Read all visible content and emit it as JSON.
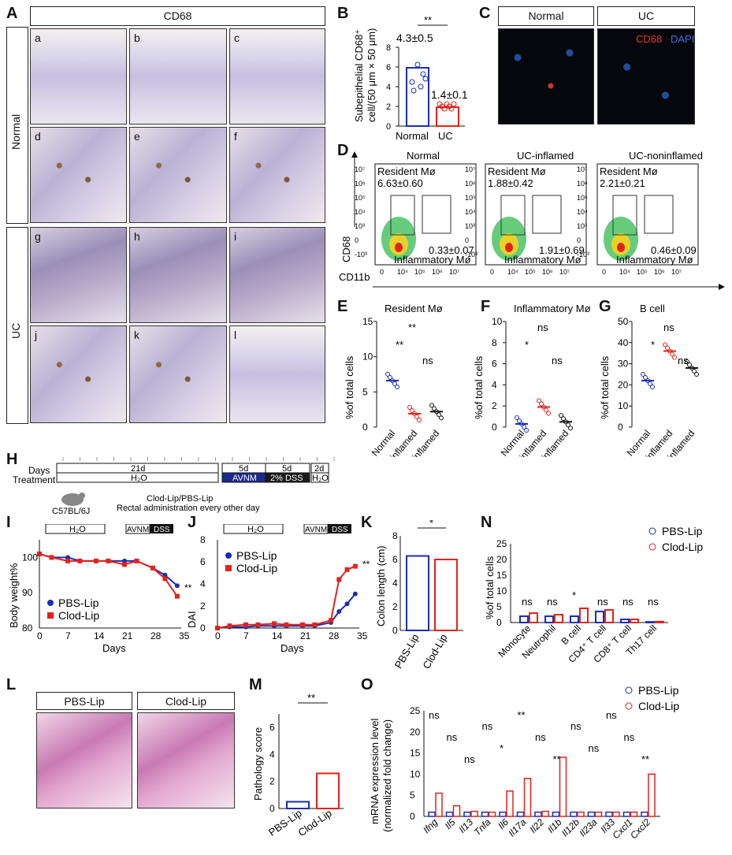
{
  "panelA": {
    "label": "A",
    "header": "CD68",
    "row_labels": [
      "Normal",
      "UC"
    ],
    "sublabels": [
      "a",
      "b",
      "c",
      "d",
      "e",
      "f",
      "g",
      "h",
      "i",
      "j",
      "k",
      "l"
    ]
  },
  "panelB": {
    "label": "B",
    "ylabel_line1": "Subepithelial CD68⁺",
    "ylabel_line2": "cell/(50 μm × 50 μm)",
    "stat1": "4.3±0.5",
    "stat2": "1.4±0.1",
    "sig": "**",
    "categories": [
      "Normal",
      "UC"
    ],
    "ticks": [
      "0",
      "2",
      "4",
      "6",
      "8"
    ]
  },
  "panelC": {
    "label": "C",
    "headers": [
      "Normal",
      "UC"
    ],
    "stain1": "CD68",
    "stain2": "DAPI"
  },
  "panelD": {
    "label": "D",
    "titles": [
      "Normal",
      "UC-inflamed",
      "UC-noninflamed"
    ],
    "resident": "Resident Mø",
    "inflammatory": "Inflammatory Mø",
    "res_vals": [
      "6.63±0.60",
      "1.88±0.42",
      "2.21±0.21"
    ],
    "inf_vals": [
      "0.33±0.07",
      "1.91±0.69",
      "0.46±0.09"
    ],
    "ylabel": "CD68",
    "xlabel": "CD11b",
    "yticks": [
      "10⁷",
      "10⁶",
      "10⁵",
      "10⁴",
      "10³",
      "0",
      "-10³"
    ],
    "xticks": [
      "0",
      "10⁴",
      "10⁵",
      "10⁶",
      "10⁷"
    ]
  },
  "panelE": {
    "label": "E",
    "title": "Resident Mø",
    "ylabel": "%of total cells",
    "ticks": [
      "0",
      "5",
      "10",
      "15"
    ],
    "sig": [
      "**",
      "**",
      "ns"
    ]
  },
  "panelF": {
    "label": "F",
    "title": "Inflammatory Mø",
    "ylabel": "%of total cells",
    "ticks": [
      "0",
      "2",
      "4",
      "6",
      "8",
      "10"
    ],
    "sig": [
      "ns",
      "*",
      "ns"
    ]
  },
  "panelG": {
    "label": "G",
    "title": "B cell",
    "ylabel": "%of total cells",
    "ticks": [
      "0",
      "10",
      "20",
      "30",
      "40",
      "50"
    ],
    "sig": [
      "ns",
      "*",
      "ns"
    ]
  },
  "group_cats": [
    "Normal",
    "UC-inflamed",
    "UC-noninflamed"
  ],
  "panelH": {
    "label": "H",
    "days_label": "Days",
    "treatment_label": "Treatment",
    "d21": "21d",
    "h2o": "H₂O",
    "d5a": "5d",
    "avnm": "AVNM",
    "d5b": "5d",
    "dss": "2% DSS",
    "d2": "2d",
    "h2o2": "H₂O",
    "mouse": "C57BL/6J",
    "clod1": "Clod-Lip/PBS-Lip",
    "clod2": "Rectal administration every other day"
  },
  "panelI": {
    "label": "I",
    "ylabel": "Body weight%",
    "xlabel": "Days",
    "ticks_y": [
      "80",
      "90",
      "100"
    ],
    "ticks_x": [
      "0",
      "7",
      "14",
      "21",
      "28",
      "35"
    ],
    "bar_h2o": "H₂O",
    "bar_avnm": "AVNM",
    "bar_dss": "DSS",
    "sig": "**",
    "legend": [
      "PBS-Lip",
      "Clod-Lip"
    ]
  },
  "panelJ": {
    "label": "J",
    "ylabel": "DAI",
    "xlabel": "Days",
    "ticks_y": [
      "0",
      "2",
      "4",
      "6",
      "8"
    ],
    "ticks_x": [
      "0",
      "7",
      "14",
      "21",
      "28",
      "35"
    ],
    "bar_h2o": "H₂O",
    "bar_avnm": "AVNM",
    "bar_dss": "DSS",
    "sig": "**",
    "legend": [
      "PBS-Lip",
      "Clod-Lip"
    ]
  },
  "panelK": {
    "label": "K",
    "ylabel": "Colon length (cm)",
    "ticks": [
      "0",
      "2",
      "4",
      "6",
      "8"
    ],
    "cats": [
      "PBS-Lip",
      "Clod-Lip"
    ],
    "sig": "*"
  },
  "panelN": {
    "label": "N",
    "ylabel": "%of total cells",
    "ticks": [
      "0",
      "5",
      "10",
      "15",
      "20",
      "25"
    ],
    "cats": [
      "Monocyte",
      "Neutrophil",
      "B cell",
      "CD4⁺ T cell",
      "CD8⁺ T cell",
      "Th17 cell"
    ],
    "sig": [
      "ns",
      "ns",
      "*",
      "ns",
      "ns",
      "ns"
    ],
    "legend": [
      "PBS-Lip",
      "Clod-Lip"
    ]
  },
  "panelL": {
    "label": "L",
    "headers": [
      "PBS-Lip",
      "Clod-Lip"
    ]
  },
  "panelM": {
    "label": "M",
    "ylabel": "Pathology score",
    "ticks": [
      "0",
      "2",
      "4",
      "6"
    ],
    "cats": [
      "PBS-Lip",
      "Clod-Lip"
    ],
    "sig": "**"
  },
  "panelO": {
    "label": "O",
    "ylabel1": "mRNA expression level",
    "ylabel2": "(normalized fold change)",
    "ticks": [
      "0",
      "5",
      "10",
      "15",
      "20",
      "25"
    ],
    "genes": [
      "Ifng",
      "Il5",
      "Il13",
      "Tnfa",
      "Il6",
      "Il17a",
      "Il22",
      "Il1b",
      "Il12b",
      "Il23a",
      "Il33",
      "Cxcl1",
      "Cxcl2"
    ],
    "sig": [
      "ns",
      "ns",
      "ns",
      "ns",
      "*",
      "**",
      "ns",
      "**",
      "ns",
      "ns",
      "ns",
      "ns",
      "**"
    ],
    "legend": [
      "PBS-Lip",
      "Clod-Lip"
    ]
  },
  "colors": {
    "pbs": "#1a2fb0",
    "clod": "#e2231a"
  },
  "chart_data": [
    {
      "type": "bar",
      "panel": "B",
      "categories": [
        "Normal",
        "UC"
      ],
      "values": [
        4.3,
        1.4
      ],
      "ylim": [
        0,
        8
      ]
    },
    {
      "type": "scatter",
      "panel": "E",
      "categories": [
        "Normal",
        "UC-inflamed",
        "UC-noninflamed"
      ],
      "values": [
        6.6,
        1.9,
        2.2
      ],
      "ylim": [
        0,
        15
      ]
    },
    {
      "type": "scatter",
      "panel": "F",
      "categories": [
        "Normal",
        "UC-inflamed",
        "UC-noninflamed"
      ],
      "values": [
        0.3,
        1.9,
        0.5
      ],
      "ylim": [
        0,
        10
      ]
    },
    {
      "type": "scatter",
      "panel": "G",
      "categories": [
        "Normal",
        "UC-inflamed",
        "UC-noninflamed"
      ],
      "values": [
        22,
        36,
        28
      ],
      "ylim": [
        0,
        50
      ]
    },
    {
      "type": "line",
      "panel": "I",
      "x": [
        0,
        3,
        7,
        10,
        14,
        17,
        21,
        24,
        28,
        31,
        34
      ],
      "series": [
        {
          "name": "PBS-Lip",
          "values": [
            101,
            100,
            100,
            99,
            99,
            99,
            99,
            99,
            97,
            95,
            92
          ]
        },
        {
          "name": "Clod-Lip",
          "values": [
            101,
            100,
            99,
            99,
            99,
            99,
            98,
            99,
            97,
            94,
            89
          ]
        }
      ],
      "ylim": [
        80,
        105
      ]
    },
    {
      "type": "line",
      "panel": "J",
      "x": [
        0,
        3,
        7,
        10,
        14,
        17,
        21,
        24,
        28,
        30,
        32,
        34
      ],
      "series": [
        {
          "name": "PBS-Lip",
          "values": [
            0,
            0.1,
            0.1,
            0.2,
            0.2,
            0.2,
            0.2,
            0.2,
            0.5,
            1.5,
            2.2,
            3.1
          ]
        },
        {
          "name": "Clod-Lip",
          "values": [
            0,
            0.2,
            0.3,
            0.3,
            0.4,
            0.3,
            0.3,
            0.3,
            0.7,
            4.4,
            5.3,
            5.6
          ]
        }
      ],
      "ylim": [
        0,
        8
      ]
    },
    {
      "type": "bar",
      "panel": "K",
      "categories": [
        "PBS-Lip",
        "Clod-Lip"
      ],
      "values": [
        6.3,
        6.0
      ],
      "ylim": [
        0,
        8
      ]
    },
    {
      "type": "bar",
      "panel": "N",
      "categories": [
        "Monocyte",
        "Neutrophil",
        "B cell",
        "CD4⁺ T cell",
        "CD8⁺ T cell",
        "Th17 cell"
      ],
      "series": [
        {
          "name": "PBS-Lip",
          "values": [
            2,
            2,
            2,
            3.5,
            1,
            0.2
          ]
        },
        {
          "name": "Clod-Lip",
          "values": [
            3,
            2.5,
            4.5,
            4,
            1,
            0.3
          ]
        }
      ],
      "ylim": [
        0,
        25
      ]
    },
    {
      "type": "bar",
      "panel": "M",
      "categories": [
        "PBS-Lip",
        "Clod-Lip"
      ],
      "values": [
        0.5,
        2.6
      ],
      "ylim": [
        0,
        7
      ]
    },
    {
      "type": "bar",
      "panel": "O",
      "categories": [
        "Ifng",
        "Il5",
        "Il13",
        "Tnfa",
        "Il6",
        "Il17a",
        "Il22",
        "Il1b",
        "Il12b",
        "Il23a",
        "Il33",
        "Cxcl1",
        "Cxcl2"
      ],
      "series": [
        {
          "name": "PBS-Lip",
          "values": [
            1,
            1,
            1,
            1,
            1,
            1,
            1,
            1,
            1,
            1,
            1,
            1,
            1
          ]
        },
        {
          "name": "Clod-Lip",
          "values": [
            5.5,
            2.5,
            1.2,
            1,
            6,
            9,
            1.2,
            14,
            1,
            1,
            1,
            1,
            10
          ]
        }
      ],
      "ylim": [
        0,
        25
      ]
    }
  ]
}
